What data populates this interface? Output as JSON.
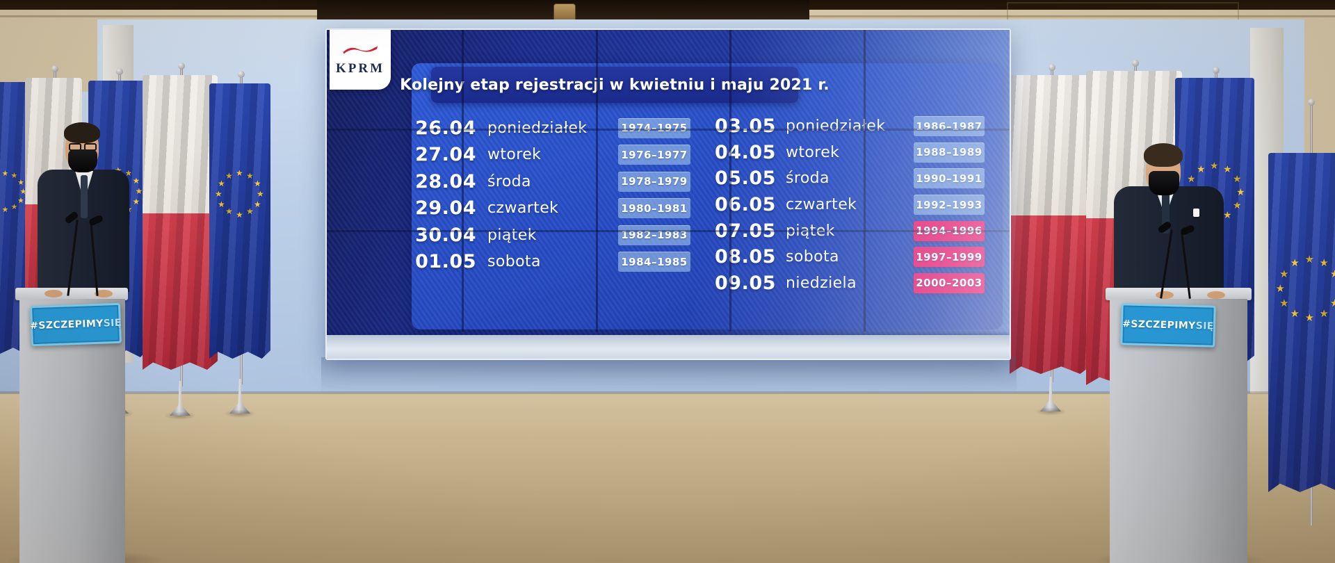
{
  "screen": {
    "logo_text": "KPRM",
    "title": "Kolejny etap rejestracji w kwietniu i maju 2021 r.",
    "schedule": {
      "left": [
        {
          "date": "26.04",
          "day": "poniedziałek",
          "years": "1974–1975",
          "highlight": false
        },
        {
          "date": "27.04",
          "day": "wtorek",
          "years": "1976–1977",
          "highlight": false
        },
        {
          "date": "28.04",
          "day": "środa",
          "years": "1978–1979",
          "highlight": false
        },
        {
          "date": "29.04",
          "day": "czwartek",
          "years": "1980–1981",
          "highlight": false
        },
        {
          "date": "30.04",
          "day": "piątek",
          "years": "1982–1983",
          "highlight": false
        },
        {
          "date": "01.05",
          "day": "sobota",
          "years": "1984–1985",
          "highlight": false
        }
      ],
      "right": [
        {
          "date": "03.05",
          "day": "poniedziałek",
          "years": "1986–1987",
          "highlight": false
        },
        {
          "date": "04.05",
          "day": "wtorek",
          "years": "1988–1989",
          "highlight": false
        },
        {
          "date": "05.05",
          "day": "środa",
          "years": "1990–1991",
          "highlight": false
        },
        {
          "date": "06.05",
          "day": "czwartek",
          "years": "1992–1993",
          "highlight": false
        },
        {
          "date": "07.05",
          "day": "piątek",
          "years": "1994–1996",
          "highlight": true
        },
        {
          "date": "08.05",
          "day": "sobota",
          "years": "1997–1999",
          "highlight": true
        },
        {
          "date": "09.05",
          "day": "niedziela",
          "years": "2000–2003",
          "highlight": true
        }
      ]
    }
  },
  "podium_sign": {
    "hashtag_main": "#SZCZEPIMY",
    "hashtag_suffix": "SIĘ"
  },
  "colors": {
    "screen_blue": "#2348bd",
    "title_band_blue": "#1e2f96",
    "badge_blue": "rgba(158,193,234,0.62)",
    "badge_pink": "#ec1065",
    "sign_blue": "#2796d2",
    "flag_red": "#cf3448",
    "eu_flag_blue": "#1e3b9c",
    "eu_star_gold": "#f5c73e"
  }
}
